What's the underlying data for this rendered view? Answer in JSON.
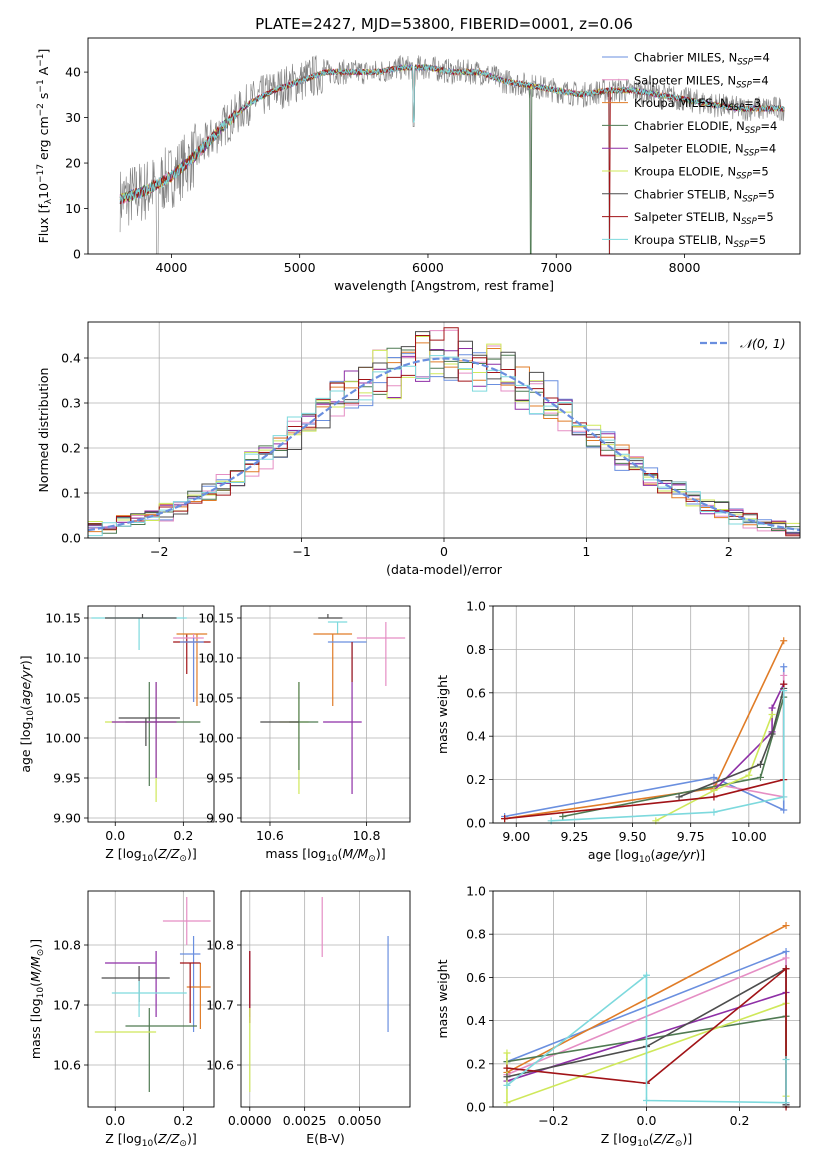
{
  "colors": {
    "blue": "#6a8fdf",
    "pink": "#e58ec4",
    "orange": "#e07c27",
    "darkgreen": "#4f7a52",
    "purple": "#8e2fa6",
    "yellowgreen": "#cfe85a",
    "darkgray": "#4d4d4d",
    "darkred": "#a11317",
    "cyan": "#7dd9dd",
    "gray": "#7f7f7f",
    "grid": "#b0b0b0"
  },
  "chart_data": [
    {
      "id": "spectrum",
      "type": "line",
      "title": "PLATE=2427, MJD=53800, FIBERID=0001, z=0.06",
      "xlabel": "wavelength [Angstrom, rest frame]",
      "ylabel": "Flux [fλ10⁻¹⁷ erg cm⁻² s⁻¹ A⁻¹]",
      "xlim": [
        3350,
        8900
      ],
      "ylim": [
        0,
        47.5
      ],
      "xticks": [
        "4000",
        "5000",
        "6000",
        "7000",
        "8000"
      ],
      "yticks": [
        "0",
        "10",
        "20",
        "30",
        "40"
      ],
      "grid": false,
      "legend_position": "lower-right",
      "continuum": {
        "x": [
          3600,
          3800,
          4000,
          4200,
          4400,
          4600,
          4800,
          5000,
          5200,
          5400,
          5600,
          5800,
          6000,
          6200,
          6400,
          6600,
          6800,
          7000,
          7200,
          7400,
          7600,
          7800,
          8000,
          8200,
          8400,
          8600,
          8800
        ],
        "y": [
          12,
          14,
          17,
          22,
          28,
          33,
          36,
          38,
          40,
          40,
          40,
          41,
          41,
          40,
          40,
          38,
          37,
          36,
          35,
          36,
          36,
          35,
          34,
          33,
          32,
          32,
          32
        ]
      },
      "series": [
        {
          "name": "Chabrier MILES, N_SSP=4",
          "color": "#6a8fdf"
        },
        {
          "name": "Salpeter MILES, N_SSP=4",
          "color": "#e58ec4"
        },
        {
          "name": "Kroupa MILES, N_SSP=3",
          "color": "#e07c27"
        },
        {
          "name": "Chabrier ELODIE, N_SSP=4",
          "color": "#4f7a52"
        },
        {
          "name": "Salpeter ELODIE, N_SSP=4",
          "color": "#8e2fa6"
        },
        {
          "name": "Kroupa ELODIE, N_SSP=5",
          "color": "#cfe85a"
        },
        {
          "name": "Chabrier STELIB, N_SSP=5",
          "color": "#4d4d4d"
        },
        {
          "name": "Salpeter STELIB, N_SSP=5",
          "color": "#a11317"
        },
        {
          "name": "Kroupa STELIB, N_SSP=5",
          "color": "#7dd9dd"
        }
      ],
      "legend_labels": [
        {
          "pre": "Chabrier MILES, N",
          "sub": "SSP",
          "post": "=4"
        },
        {
          "pre": "Salpeter MILES, N",
          "sub": "SSP",
          "post": "=4"
        },
        {
          "pre": "Kroupa MILES, N",
          "sub": "SSP",
          "post": "=3"
        },
        {
          "pre": "Chabrier ELODIE, N",
          "sub": "SSP",
          "post": "=4"
        },
        {
          "pre": "Salpeter ELODIE, N",
          "sub": "SSP",
          "post": "=4"
        },
        {
          "pre": "Kroupa ELODIE, N",
          "sub": "SSP",
          "post": "=5"
        },
        {
          "pre": "Chabrier STELIB, N",
          "sub": "SSP",
          "post": "=5"
        },
        {
          "pre": "Salpeter STELIB, N",
          "sub": "SSP",
          "post": "=5"
        },
        {
          "pre": "Kroupa STELIB, N",
          "sub": "SSP",
          "post": "=5"
        }
      ]
    },
    {
      "id": "residuals",
      "type": "line",
      "xlabel": "(data-model)/error",
      "ylabel": "Normed distribution",
      "xlim": [
        -2.5,
        2.5
      ],
      "ylim": [
        0,
        0.48
      ],
      "xticks": [
        "-2",
        "-1",
        "0",
        "1",
        "2"
      ],
      "yticks": [
        "0.0",
        "0.1",
        "0.2",
        "0.3",
        "0.4"
      ],
      "grid": true,
      "legend": "𝒩(0, 1)",
      "legend_position": "top-right",
      "gaussian": {
        "mean": 0,
        "sigma": 1,
        "color": "#6a8fdf",
        "style": "dashed"
      }
    },
    {
      "id": "age_vs_Z",
      "type": "scatter",
      "xlabel": "Z [log10(Z/Z⊙)]",
      "ylabel": "age [log10(age/yr)]",
      "xlim": [
        -0.08,
        0.29
      ],
      "ylim": [
        9.895,
        10.165
      ],
      "xticks": [
        "0.0",
        "0.2"
      ],
      "yticks": [
        "9.90",
        "9.95",
        "10.00",
        "10.05",
        "10.10",
        "10.15"
      ],
      "grid": true,
      "points": [
        {
          "x": 0.07,
          "y": 10.15,
          "xerr": [
            0.14,
            0.14
          ],
          "yerr": [
            0.04,
            0.0
          ],
          "color": "#7dd9dd"
        },
        {
          "x": 0.08,
          "y": 10.15,
          "xerr": [
            0.11,
            0.1
          ],
          "yerr": [
            0.0,
            0.005
          ],
          "color": "#4d4d4d"
        },
        {
          "x": 0.21,
          "y": 10.12,
          "xerr": [
            0.04,
            0.07
          ],
          "yerr": [
            0.04,
            0.01
          ],
          "color": "#a11317"
        },
        {
          "x": 0.24,
          "y": 10.13,
          "xerr": [
            0.06,
            0.03
          ],
          "yerr": [
            0.09,
            0.0
          ],
          "color": "#e07c27"
        },
        {
          "x": 0.23,
          "y": 10.125,
          "xerr": [
            0.06,
            0.03
          ],
          "yerr": [
            0.08,
            0.005
          ],
          "color": "#e58ec4"
        },
        {
          "x": 0.23,
          "y": 10.12,
          "xerr": [
            0.04,
            0.03
          ],
          "yerr": [
            0.075,
            0.005
          ],
          "color": "#6a8fdf"
        },
        {
          "x": 0.1,
          "y": 10.02,
          "xerr": [
            0.07,
            0.15
          ],
          "yerr": [
            0.08,
            0.05
          ],
          "color": "#4f7a52"
        },
        {
          "x": 0.12,
          "y": 10.02,
          "xerr": [
            0.15,
            0.06
          ],
          "yerr": [
            0.1,
            0.05
          ],
          "color": "#cfe85a"
        },
        {
          "x": 0.12,
          "y": 10.02,
          "xerr": [
            0.13,
            0.06
          ],
          "yerr": [
            0.07,
            0.05
          ],
          "color": "#8e2fa6"
        },
        {
          "x": 0.09,
          "y": 10.025,
          "xerr": [
            0.08,
            0.1
          ],
          "yerr": [
            0.035,
            0.0
          ],
          "color": "#4d4d4d"
        }
      ]
    },
    {
      "id": "age_vs_mass",
      "type": "scatter",
      "xlabel": "mass [log10(M/M⊙)]",
      "xlim": [
        10.54,
        10.89
      ],
      "ylim": [
        9.895,
        10.165
      ],
      "xticks": [
        "10.6",
        "10.8"
      ],
      "yticks": [
        "9.90",
        "9.95",
        "10.00",
        "10.05",
        "10.10",
        "10.15"
      ],
      "grid": true,
      "points": [
        {
          "x": 10.72,
          "y": 10.15,
          "xerr": [
            0.02,
            0.03
          ],
          "yerr": [
            0.0,
            0.005
          ],
          "color": "#4d4d4d"
        },
        {
          "x": 10.74,
          "y": 10.145,
          "xerr": [
            0.02,
            0.02
          ],
          "yerr": [
            0.015,
            0.0
          ],
          "color": "#7dd9dd"
        },
        {
          "x": 10.73,
          "y": 10.13,
          "xerr": [
            0.04,
            0.04
          ],
          "yerr": [
            0.09,
            0.0
          ],
          "color": "#e07c27"
        },
        {
          "x": 10.77,
          "y": 10.12,
          "xerr": [
            0.05,
            0.03
          ],
          "yerr": [
            0.05,
            0.0
          ],
          "color": "#6a8fdf"
        },
        {
          "x": 10.84,
          "y": 10.125,
          "xerr": [
            0.06,
            0.04
          ],
          "yerr": [
            0.06,
            0.02
          ],
          "color": "#e58ec4"
        },
        {
          "x": 10.77,
          "y": 10.12,
          "xerr": [
            0.0,
            0.0
          ],
          "yerr": [
            0.05,
            0.0
          ],
          "color": "#a11317"
        },
        {
          "x": 10.66,
          "y": 10.02,
          "xerr": [
            0.04,
            0.02
          ],
          "yerr": [
            0.09,
            0.05
          ],
          "color": "#cfe85a"
        },
        {
          "x": 10.66,
          "y": 10.02,
          "xerr": [
            0.02,
            0.04
          ],
          "yerr": [
            0.06,
            0.05
          ],
          "color": "#4f7a52"
        },
        {
          "x": 10.77,
          "y": 10.02,
          "xerr": [
            0.06,
            0.02
          ],
          "yerr": [
            0.09,
            0.05
          ],
          "color": "#8e2fa6"
        },
        {
          "x": 10.66,
          "y": 10.02,
          "xerr": [
            0.08,
            0.0
          ],
          "yerr": [
            0.0,
            0.0
          ],
          "color": "#4d4d4d"
        }
      ]
    },
    {
      "id": "mass_weight_vs_age",
      "type": "line",
      "xlabel": "age [log10(age/yr)]",
      "ylabel": "mass weight",
      "xlim": [
        8.9,
        10.22
      ],
      "ylim": [
        0,
        1.0
      ],
      "xticks": [
        "9.00",
        "9.25",
        "9.50",
        "9.75",
        "10.00"
      ],
      "yticks": [
        "0.0",
        "0.2",
        "0.4",
        "0.6",
        "0.8",
        "1.0"
      ],
      "grid": true,
      "series": [
        {
          "color": "#6a8fdf",
          "x": [
            8.95,
            9.85,
            10.15,
            10.15
          ],
          "y": [
            0.03,
            0.21,
            0.06,
            0.72
          ]
        },
        {
          "color": "#e58ec4",
          "x": [
            9.85,
            10.15,
            10.15
          ],
          "y": [
            0.18,
            0.12,
            0.68
          ]
        },
        {
          "color": "#e07c27",
          "x": [
            8.95,
            9.85,
            10.15
          ],
          "y": [
            0.02,
            0.16,
            0.84
          ]
        },
        {
          "color": "#4f7a52",
          "x": [
            9.2,
            10.05,
            10.15
          ],
          "y": [
            0.03,
            0.21,
            0.58
          ]
        },
        {
          "color": "#8e2fa6",
          "x": [
            9.85,
            10.1,
            10.1,
            10.15
          ],
          "y": [
            0.15,
            0.42,
            0.53,
            0.64
          ]
        },
        {
          "color": "#cfe85a",
          "x": [
            9.6,
            9.85,
            10.0,
            10.1
          ],
          "y": [
            0.01,
            0.15,
            0.22,
            0.5
          ]
        },
        {
          "color": "#4d4d4d",
          "x": [
            9.7,
            10.05,
            10.1,
            10.15
          ],
          "y": [
            0.12,
            0.27,
            0.41,
            0.62
          ]
        },
        {
          "color": "#a11317",
          "x": [
            8.95,
            9.85,
            10.15,
            10.15
          ],
          "y": [
            0.02,
            0.12,
            0.2,
            0.64
          ]
        },
        {
          "color": "#7dd9dd",
          "x": [
            9.15,
            9.85,
            10.15,
            10.15
          ],
          "y": [
            0.01,
            0.05,
            0.12,
            0.61
          ]
        }
      ]
    },
    {
      "id": "mass_vs_Z",
      "type": "scatter",
      "xlabel": "Z [log10(Z/Z⊙)]",
      "ylabel": "mass [log10(M/M⊙)]",
      "xlim": [
        -0.08,
        0.29
      ],
      "ylim": [
        10.53,
        10.89
      ],
      "xticks": [
        "0.0",
        "0.2"
      ],
      "yticks": [
        "10.6",
        "10.7",
        "10.8"
      ],
      "grid": true,
      "points": [
        {
          "x": 0.21,
          "y": 10.84,
          "xerr": [
            0.07,
            0.07
          ],
          "yerr": [
            0.04,
            0.04
          ],
          "color": "#e58ec4"
        },
        {
          "x": 0.23,
          "y": 10.785,
          "xerr": [
            0.04,
            0.02
          ],
          "yerr": [
            0.13,
            0.03
          ],
          "color": "#6a8fdf"
        },
        {
          "x": 0.25,
          "y": 10.73,
          "xerr": [
            0.04,
            0.03
          ],
          "yerr": [
            0.07,
            0.04
          ],
          "color": "#e07c27"
        },
        {
          "x": 0.22,
          "y": 10.77,
          "xerr": [
            0.03,
            0.03
          ],
          "yerr": [
            0.1,
            0.0
          ],
          "color": "#a11317"
        },
        {
          "x": 0.12,
          "y": 10.77,
          "xerr": [
            0.15,
            0.0
          ],
          "yerr": [
            0.09,
            0.02
          ],
          "color": "#8e2fa6"
        },
        {
          "x": 0.07,
          "y": 10.745,
          "xerr": [
            0.11,
            0.09
          ],
          "yerr": [
            0.04,
            0.02
          ],
          "color": "#4d4d4d"
        },
        {
          "x": 0.07,
          "y": 10.72,
          "xerr": [
            0.08,
            0.14
          ],
          "yerr": [
            0.04,
            0.02
          ],
          "color": "#7dd9dd"
        },
        {
          "x": 0.1,
          "y": 10.665,
          "xerr": [
            0.07,
            0.14
          ],
          "yerr": [
            0.11,
            0.03
          ],
          "color": "#4f7a52"
        },
        {
          "x": 0.12,
          "y": 10.655,
          "xerr": [
            0.18,
            0.0
          ],
          "yerr": [
            0.0,
            0.0
          ],
          "color": "#cfe85a"
        }
      ]
    },
    {
      "id": "mass_vs_ebv",
      "type": "scatter",
      "xlabel": "E(B-V)",
      "xlim": [
        -0.0004,
        0.0073
      ],
      "ylim": [
        10.53,
        10.89
      ],
      "xticks": [
        "0.0000",
        "0.0025",
        "0.0050"
      ],
      "yticks": [
        "10.6",
        "10.7",
        "10.8"
      ],
      "grid": true,
      "points": [
        {
          "x": 0.0033,
          "y": 10.84,
          "xerr": [
            0,
            0
          ],
          "yerr": [
            0.06,
            0.04
          ],
          "color": "#e58ec4"
        },
        {
          "x": 0.0063,
          "y": 10.785,
          "xerr": [
            0,
            0
          ],
          "yerr": [
            0.13,
            0.03
          ],
          "color": "#6a8fdf"
        },
        {
          "x": 0.0,
          "y": 10.77,
          "xerr": [
            0,
            0
          ],
          "yerr": [
            0.09,
            0.02
          ],
          "color": "#8e2fa6"
        },
        {
          "x": 0.0,
          "y": 10.77,
          "xerr": [
            0,
            0
          ],
          "yerr": [
            0.1,
            0.02
          ],
          "color": "#a11317"
        },
        {
          "x": 0.0,
          "y": 10.655,
          "xerr": [
            0,
            0
          ],
          "yerr": [
            0.1,
            0.04
          ],
          "color": "#cfe85a"
        }
      ]
    },
    {
      "id": "mass_weight_vs_Z",
      "type": "line",
      "xlabel": "Z [log10(Z/Z⊙)]",
      "ylabel": "mass weight",
      "xlim": [
        -0.33,
        0.33
      ],
      "ylim": [
        0,
        1.0
      ],
      "xticks": [
        "-0.2",
        "0.0",
        "0.2"
      ],
      "yticks": [
        "0.0",
        "0.2",
        "0.4",
        "0.6",
        "0.8",
        "1.0"
      ],
      "grid": true,
      "series": [
        {
          "color": "#6a8fdf",
          "x": [
            -0.3,
            0.3,
            0.3
          ],
          "y": [
            0.21,
            0.72,
            0.02
          ]
        },
        {
          "color": "#e58ec4",
          "x": [
            -0.3,
            0.3,
            0.3
          ],
          "y": [
            0.15,
            0.69,
            0.02
          ]
        },
        {
          "color": "#e07c27",
          "x": [
            -0.3,
            0.3
          ],
          "y": [
            0.16,
            0.84
          ]
        },
        {
          "color": "#4f7a52",
          "x": [
            -0.3,
            0.3,
            0.3
          ],
          "y": [
            0.21,
            0.42,
            0.01
          ]
        },
        {
          "color": "#8e2fa6",
          "x": [
            -0.3,
            0.3,
            0.3
          ],
          "y": [
            0.12,
            0.53,
            0.01
          ]
        },
        {
          "color": "#cfe85a",
          "x": [
            -0.3,
            -0.3,
            0.3,
            0.3
          ],
          "y": [
            0.25,
            0.02,
            0.48,
            0.05
          ]
        },
        {
          "color": "#4d4d4d",
          "x": [
            -0.3,
            0.0,
            0.3,
            0.3
          ],
          "y": [
            0.14,
            0.28,
            0.64,
            0.01
          ]
        },
        {
          "color": "#a11317",
          "x": [
            -0.3,
            0.0,
            0.3,
            0.3
          ],
          "y": [
            0.18,
            0.11,
            0.64,
            0.0
          ]
        },
        {
          "color": "#7dd9dd",
          "x": [
            -0.3,
            0.0,
            0.0,
            0.3,
            0.3
          ],
          "y": [
            0.1,
            0.61,
            0.03,
            0.02,
            0.22
          ]
        }
      ]
    }
  ]
}
